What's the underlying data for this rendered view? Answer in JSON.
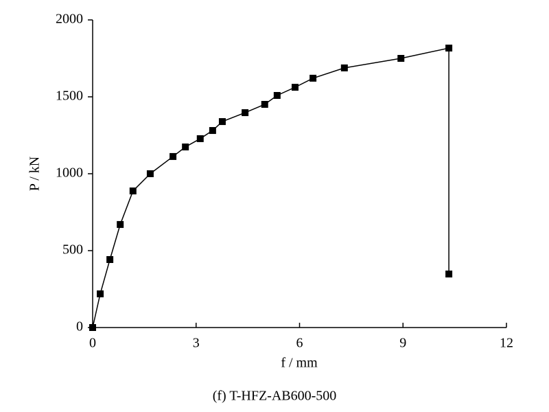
{
  "chart_data": {
    "type": "line",
    "title": "(f) T-HFZ-AB600-500",
    "x_label": "f / mm",
    "y_label": "P / kN",
    "x": [
      0,
      0.22,
      0.5,
      0.8,
      1.17,
      1.67,
      2.33,
      2.69,
      3.12,
      3.48,
      3.76,
      4.42,
      4.99,
      5.35,
      5.87,
      6.39,
      7.3,
      8.94,
      10.33,
      10.33
    ],
    "series": [
      {
        "color": "#000000",
        "values": [
          0,
          219,
          442,
          670,
          888,
          1000,
          1112,
          1174,
          1228,
          1281,
          1339,
          1397,
          1451,
          1509,
          1562,
          1621,
          1688,
          1750,
          1817,
          348
        ]
      }
    ],
    "xlim": [
      0,
      12
    ],
    "xticks": [
      0,
      3,
      6,
      9,
      12
    ],
    "ylim": [
      0,
      2000
    ],
    "yticks": [
      0,
      500,
      1000,
      1500,
      2000
    ]
  }
}
